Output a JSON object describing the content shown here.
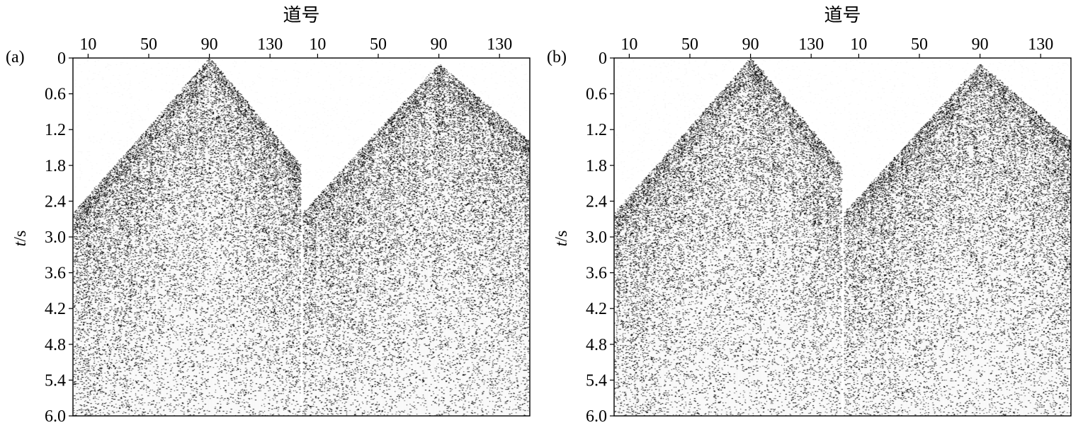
{
  "figures": [
    {
      "panel_label": "(a)",
      "x_axis_label": "道号",
      "y_axis_label_italic": "t",
      "y_axis_label_unit": "/s",
      "sections": 2,
      "traces_per_section": 150,
      "x_ticks": [
        "10",
        "50",
        "90",
        "130"
      ],
      "x_tick_values": [
        10,
        50,
        90,
        130
      ],
      "y_ticks": [
        "0",
        "0.6",
        "1.2",
        "1.8",
        "2.4",
        "3.0",
        "3.6",
        "4.2",
        "4.8",
        "5.4",
        "6.0"
      ],
      "y_tick_values": [
        0,
        0.6,
        1.2,
        1.8,
        2.4,
        3.0,
        3.6,
        4.2,
        4.8,
        5.4,
        6.0
      ],
      "y_range": [
        0,
        6.0
      ],
      "first_break_apex": [
        {
          "trace": 90,
          "time": 0.0
        },
        {
          "trace": 90,
          "time": 0.1
        }
      ],
      "first_break_ends": [
        {
          "trace": 1,
          "time": 2.6,
          "end_trace": 150,
          "end_time": 1.8
        },
        {
          "trace": 1,
          "time": 2.6,
          "end_trace": 150,
          "end_time": 1.4
        }
      ],
      "image_colors": {
        "ink": "#000000",
        "paper": "#ffffff"
      }
    },
    {
      "panel_label": "(b)",
      "x_axis_label": "道号",
      "y_axis_label_italic": "t",
      "y_axis_label_unit": "/s",
      "sections": 2,
      "traces_per_section": 150,
      "x_ticks": [
        "10",
        "50",
        "90",
        "130"
      ],
      "x_tick_values": [
        10,
        50,
        90,
        130
      ],
      "y_ticks": [
        "0",
        "0.6",
        "1.2",
        "1.8",
        "2.4",
        "3.0",
        "3.6",
        "4.2",
        "4.8",
        "5.4",
        "6.0"
      ],
      "y_tick_values": [
        0,
        0.6,
        1.2,
        1.8,
        2.4,
        3.0,
        3.6,
        4.2,
        4.8,
        5.4,
        6.0
      ],
      "y_range": [
        0,
        6.0
      ],
      "first_break_apex": [
        {
          "trace": 90,
          "time": 0.0
        },
        {
          "trace": 90,
          "time": 0.1
        }
      ],
      "first_break_ends": [
        {
          "trace": 1,
          "time": 2.6,
          "end_trace": 150,
          "end_time": 1.8
        },
        {
          "trace": 1,
          "time": 2.6,
          "end_trace": 150,
          "end_time": 1.4
        }
      ],
      "image_colors": {
        "ink": "#000000",
        "paper": "#ffffff"
      }
    }
  ]
}
